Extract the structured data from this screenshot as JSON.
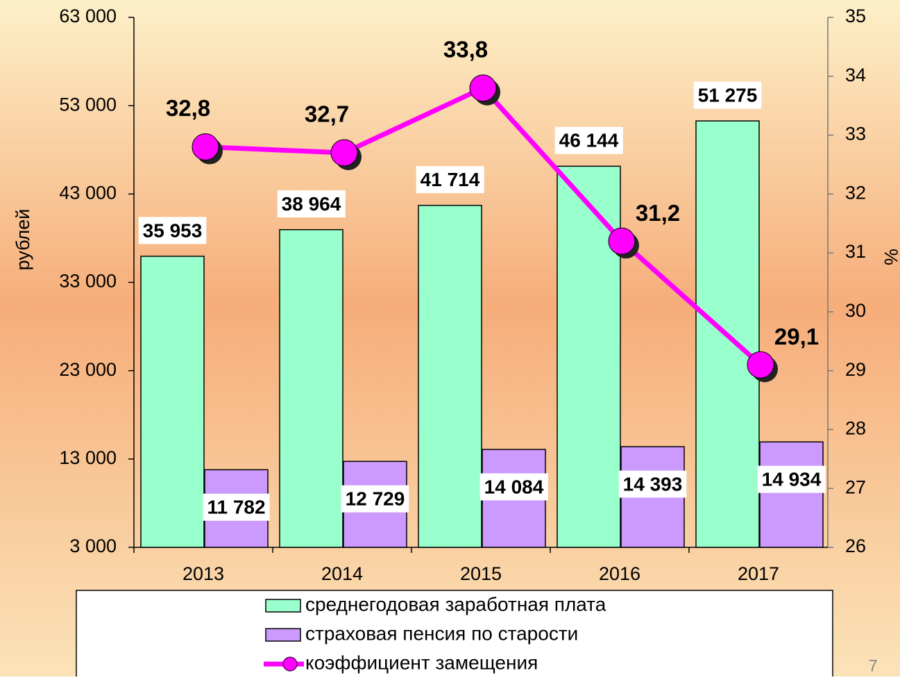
{
  "chart_data": {
    "type": "bar_line",
    "categories": [
      "2013",
      "2014",
      "2015",
      "2016",
      "2017"
    ],
    "y_label": "рублей",
    "y2_label": "%",
    "ylim": [
      3000,
      63000
    ],
    "yticks": [
      {
        "value": 3000,
        "label": "3 000"
      },
      {
        "value": 13000,
        "label": "13 000"
      },
      {
        "value": 23000,
        "label": "23 000"
      },
      {
        "value": 33000,
        "label": "33 000"
      },
      {
        "value": 43000,
        "label": "43 000"
      },
      {
        "value": 53000,
        "label": "53 000"
      },
      {
        "value": 63000,
        "label": "63 000"
      }
    ],
    "y2lim": [
      26,
      35
    ],
    "y2ticks": [
      26,
      27,
      28,
      29,
      30,
      31,
      32,
      33,
      34,
      35
    ],
    "series": [
      {
        "name": "среднегодовая заработная плата",
        "color": "#99ffcc",
        "type": "bar",
        "values": [
          35953,
          38964,
          41714,
          46144,
          51275
        ],
        "value_labels": [
          "35 953",
          "38 964",
          "41 714",
          "46 144",
          "51 275"
        ]
      },
      {
        "name": "страховая пенсия по старости",
        "color": "#cc99ff",
        "type": "bar",
        "values": [
          11782,
          12729,
          14084,
          14393,
          14934
        ],
        "value_labels": [
          "11 782",
          "12 729",
          "14 084",
          "14 393",
          "14 934"
        ]
      },
      {
        "name": "коэффициент замещения",
        "color": "#ff00ff",
        "type": "line",
        "axis": "y2",
        "values": [
          32.8,
          32.7,
          33.8,
          31.2,
          29.1
        ],
        "value_labels": [
          "32,8",
          "32,7",
          "33,8",
          "31,2",
          "29,1"
        ]
      }
    ],
    "page_number": "7"
  }
}
